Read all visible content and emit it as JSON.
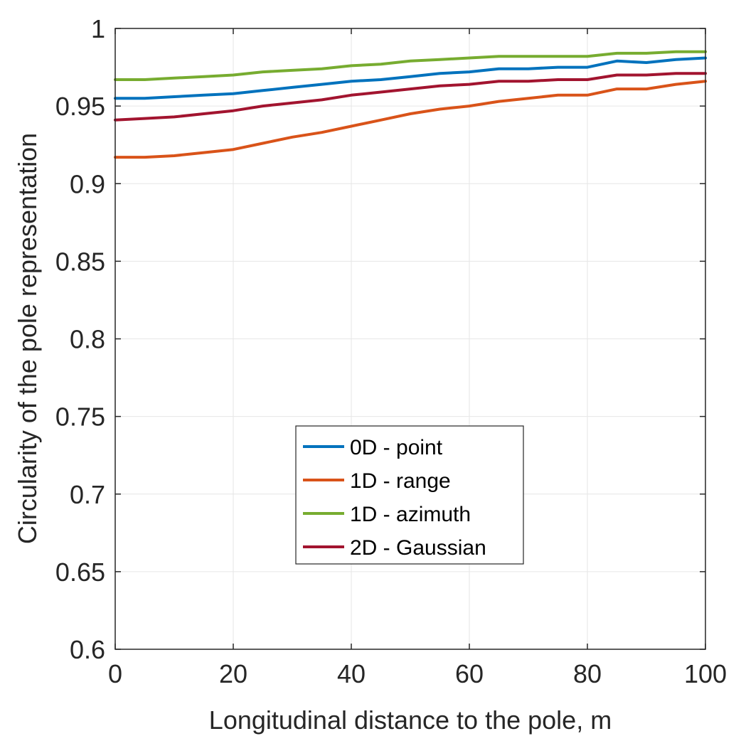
{
  "chart_data": {
    "type": "line",
    "title": "",
    "xlabel": "Longitudinal distance to the pole, m",
    "ylabel": "Circularity of the pole representation",
    "xlim": [
      0,
      100
    ],
    "ylim": [
      0.6,
      1
    ],
    "xticks": [
      0,
      20,
      40,
      60,
      80,
      100
    ],
    "xtick_labels": [
      "0",
      "20",
      "40",
      "60",
      "80",
      "100"
    ],
    "yticks": [
      0.6,
      0.65,
      0.7,
      0.75,
      0.8,
      0.85,
      0.9,
      0.95,
      1
    ],
    "ytick_labels": [
      "0.6",
      "0.65",
      "0.7",
      "0.75",
      "0.8",
      "0.85",
      "0.9",
      "0.95",
      "1"
    ],
    "grid": true,
    "legend_position": "center",
    "x": [
      0,
      5,
      10,
      15,
      20,
      25,
      30,
      35,
      40,
      45,
      50,
      55,
      60,
      65,
      70,
      75,
      80,
      85,
      90,
      95,
      100
    ],
    "series": [
      {
        "name": "0D - point",
        "color": "#0072BD",
        "values": [
          0.955,
          0.955,
          0.956,
          0.957,
          0.958,
          0.96,
          0.962,
          0.964,
          0.966,
          0.967,
          0.969,
          0.971,
          0.972,
          0.974,
          0.974,
          0.975,
          0.975,
          0.979,
          0.978,
          0.98,
          0.981
        ]
      },
      {
        "name": "1D - range",
        "color": "#D95319",
        "values": [
          0.917,
          0.917,
          0.918,
          0.92,
          0.922,
          0.926,
          0.93,
          0.933,
          0.937,
          0.941,
          0.945,
          0.948,
          0.95,
          0.953,
          0.955,
          0.957,
          0.957,
          0.961,
          0.961,
          0.964,
          0.966
        ]
      },
      {
        "name": "1D - azimuth",
        "color": "#77AC30",
        "values": [
          0.967,
          0.967,
          0.968,
          0.969,
          0.97,
          0.972,
          0.973,
          0.974,
          0.976,
          0.977,
          0.979,
          0.98,
          0.981,
          0.982,
          0.982,
          0.982,
          0.982,
          0.984,
          0.984,
          0.985,
          0.985
        ]
      },
      {
        "name": "2D - Gaussian",
        "color": "#A2142F",
        "values": [
          0.941,
          0.942,
          0.943,
          0.945,
          0.947,
          0.95,
          0.952,
          0.954,
          0.957,
          0.959,
          0.961,
          0.963,
          0.964,
          0.966,
          0.966,
          0.967,
          0.967,
          0.97,
          0.97,
          0.971,
          0.971
        ]
      }
    ]
  }
}
